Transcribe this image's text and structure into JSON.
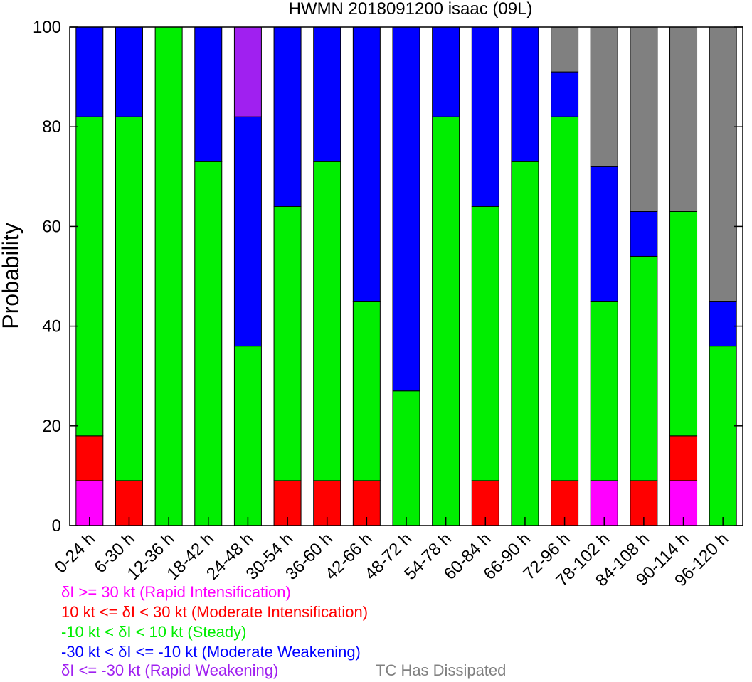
{
  "chart_data": {
    "type": "bar",
    "stacked": true,
    "title": "HWMN 2018091200 isaac (09L)",
    "ylabel": "Probability",
    "ylim": [
      0,
      100
    ],
    "yticks": [
      0,
      20,
      40,
      60,
      80,
      100
    ],
    "categories": [
      "0-24 h",
      "6-30 h",
      "12-36 h",
      "18-42 h",
      "24-48 h",
      "30-54 h",
      "36-60 h",
      "42-66 h",
      "48-72 h",
      "54-78 h",
      "60-84 h",
      "66-90 h",
      "72-96 h",
      "78-102 h",
      "84-108 h",
      "90-114 h",
      "96-120 h"
    ],
    "series": [
      {
        "key": "ri",
        "color": "#ff00ff",
        "values": [
          9,
          0,
          0,
          0,
          0,
          0,
          0,
          0,
          0,
          0,
          0,
          0,
          0,
          9,
          0,
          9,
          0
        ]
      },
      {
        "key": "mi",
        "color": "#ff0000",
        "values": [
          9,
          9,
          0,
          0,
          0,
          9,
          9,
          9,
          0,
          0,
          9,
          0,
          9,
          0,
          9,
          9,
          0
        ]
      },
      {
        "key": "steady",
        "color": "#00ee00",
        "values": [
          64,
          73,
          100,
          73,
          36,
          55,
          64,
          36,
          27,
          82,
          55,
          73,
          73,
          36,
          45,
          45,
          36
        ]
      },
      {
        "key": "mw",
        "color": "#0000ff",
        "values": [
          18,
          18,
          0,
          27,
          46,
          36,
          27,
          55,
          73,
          18,
          36,
          27,
          9,
          27,
          9,
          0,
          9
        ]
      },
      {
        "key": "rw",
        "color": "#a020f0",
        "values": [
          0,
          0,
          0,
          0,
          18,
          0,
          0,
          0,
          0,
          0,
          0,
          0,
          0,
          0,
          0,
          0,
          0
        ]
      },
      {
        "key": "dissipated",
        "color": "#808080",
        "values": [
          0,
          0,
          0,
          0,
          0,
          0,
          0,
          0,
          0,
          0,
          0,
          0,
          9,
          28,
          37,
          37,
          55
        ]
      }
    ],
    "legend": [
      {
        "text": "δI >= 30 kt (Rapid Intensification)",
        "color": "#ff00ff"
      },
      {
        "text": "10 kt <= δI < 30 kt (Moderate Intensification)",
        "color": "#ff0000"
      },
      {
        "text": "-10 kt < δI < 10 kt (Steady)",
        "color": "#00ee00"
      },
      {
        "text": "-30 kt < δI <= -10 kt (Moderate Weakening)",
        "color": "#0000ff"
      },
      {
        "text": "δI <= -30 kt (Rapid Weakening)",
        "color": "#a020f0"
      },
      {
        "text": "TC Has Dissipated",
        "color": "#808080"
      }
    ]
  }
}
